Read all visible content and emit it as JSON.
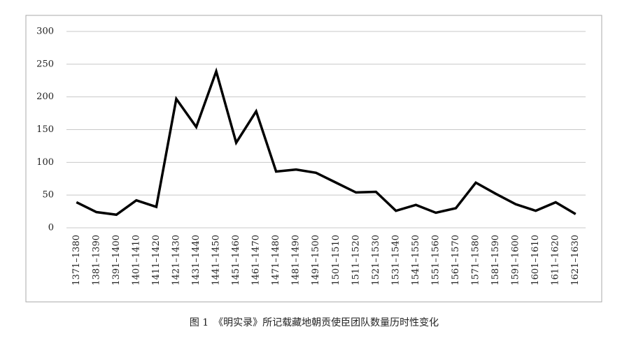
{
  "chart_data": {
    "type": "line",
    "caption": "图 1　《明实录》所记载藏地朝贡使臣团队数量历时性变化",
    "categories": [
      "1371–1380",
      "1381–1390",
      "1391–1400",
      "1401–1410",
      "1411–1420",
      "1421–1430",
      "1431–1440",
      "1441–1450",
      "1451–1460",
      "1461–1470",
      "1471–1480",
      "1481–1490",
      "1491–1500",
      "1501–1510",
      "1511–1520",
      "1521–1530",
      "1531–1540",
      "1541–1550",
      "1551–1560",
      "1561–1570",
      "1571–1580",
      "1581–1590",
      "1591–1600",
      "1601–1610",
      "1611–1620",
      "1621–1630"
    ],
    "values": [
      39,
      24,
      20,
      42,
      32,
      197,
      154,
      239,
      130,
      178,
      86,
      89,
      84,
      69,
      54,
      55,
      26,
      35,
      23,
      30,
      69,
      52,
      36,
      26,
      39,
      21
    ],
    "color": "#000000",
    "ylim": [
      0,
      300
    ],
    "yticks": [
      0,
      50,
      100,
      150,
      200,
      250,
      300
    ],
    "grid": true
  }
}
